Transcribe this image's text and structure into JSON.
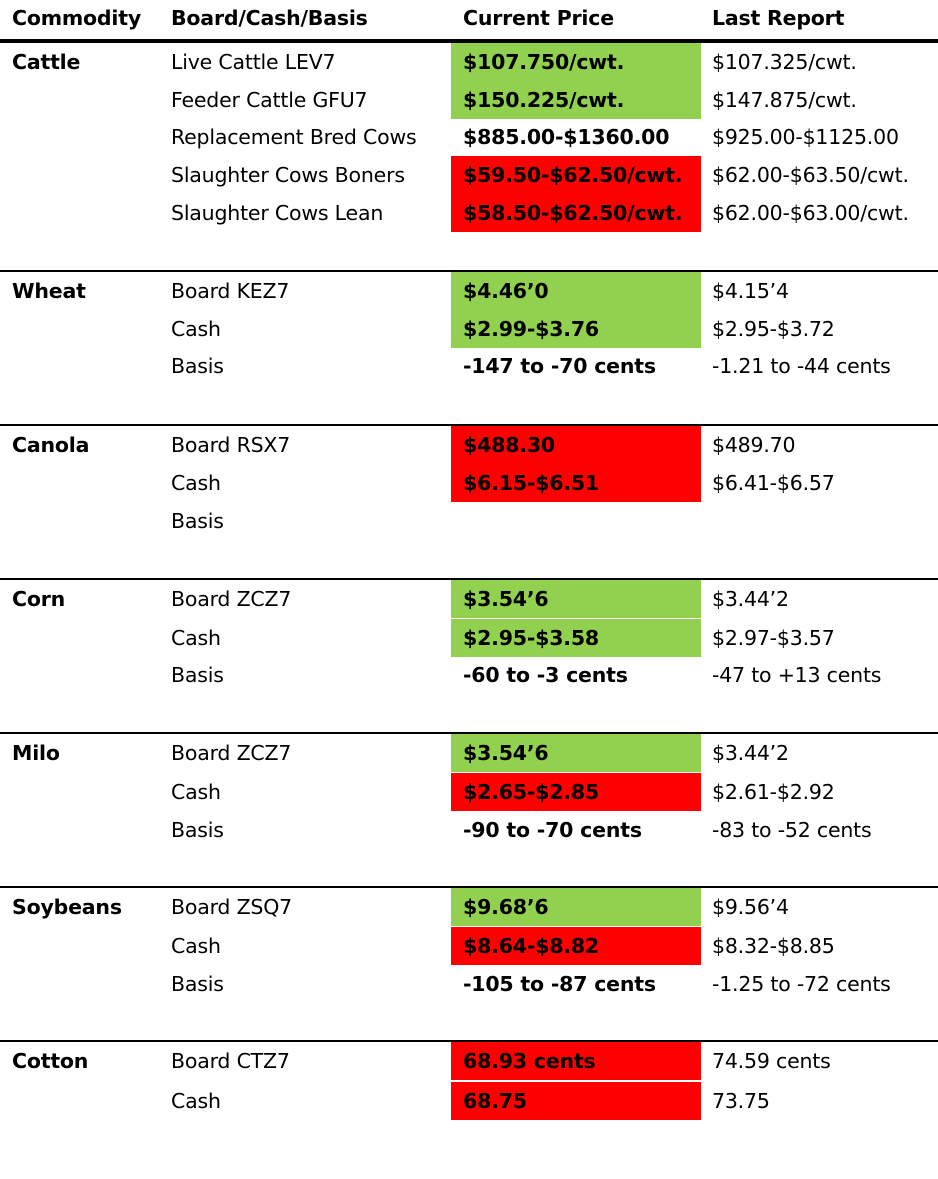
{
  "header": {
    "commodity": "Commodity",
    "board": "Board/Cash/Basis",
    "current": "Current Price",
    "last": "Last Report"
  },
  "colors": {
    "up": "#92d050",
    "down": "#ff0000"
  },
  "groups": [
    {
      "commodity": "Cattle",
      "rows": [
        {
          "label": "Live Cattle LEV7",
          "current": "$107.750/cwt.",
          "last": "$107.325/cwt.",
          "trend": "up"
        },
        {
          "label": "Feeder Cattle GFU7",
          "current": "$150.225/cwt.",
          "last": "$147.875/cwt.",
          "trend": "up"
        },
        {
          "label": "Replacement Bred Cows",
          "current": "$885.00-$1360.00",
          "last": "$925.00-$1125.00",
          "trend": "none"
        },
        {
          "label": "Slaughter Cows Boners",
          "current": "$59.50-$62.50/cwt.",
          "last": "$62.00-$63.50/cwt.",
          "trend": "down"
        },
        {
          "label": "Slaughter Cows Lean",
          "current": "$58.50-$62.50/cwt.",
          "last": "$62.00-$63.00/cwt.",
          "trend": "down"
        }
      ]
    },
    {
      "commodity": "Wheat",
      "rows": [
        {
          "label": "Board KEZ7",
          "current": "$4.46’0",
          "last": "$4.15’4",
          "trend": "up"
        },
        {
          "label": "Cash",
          "current": "$2.99-$3.76",
          "last": "$2.95-$3.72",
          "trend": "up"
        },
        {
          "label": "Basis",
          "current": "-147 to -70 cents",
          "last": "-1.21 to -44 cents",
          "trend": "none"
        }
      ]
    },
    {
      "commodity": "Canola",
      "rows": [
        {
          "label": "Board RSX7",
          "current": "$488.30",
          "last": "$489.70",
          "trend": "down"
        },
        {
          "label": "Cash",
          "current": "$6.15-$6.51",
          "last": "$6.41-$6.57",
          "trend": "down"
        },
        {
          "label": "Basis",
          "current": "",
          "last": "",
          "trend": "none"
        }
      ]
    },
    {
      "commodity": "Corn",
      "rows": [
        {
          "label": "Board ZCZ7",
          "current": "$3.54’6",
          "last": "$3.44’2",
          "trend": "up"
        },
        {
          "label": "Cash",
          "current": "$2.95-$3.58",
          "last": "$2.97-$3.57",
          "trend": "up"
        },
        {
          "label": "Basis",
          "current": "-60 to -3 cents",
          "last": "-47 to +13 cents",
          "trend": "none"
        }
      ]
    },
    {
      "commodity": "Milo",
      "rows": [
        {
          "label": "Board ZCZ7",
          "current": "$3.54’6",
          "last": "$3.44’2",
          "trend": "up"
        },
        {
          "label": "Cash",
          "current": "$2.65-$2.85",
          "last": "$2.61-$2.92",
          "trend": "down"
        },
        {
          "label": "Basis",
          "current": "-90 to -70 cents",
          "last": "-83 to -52 cents",
          "trend": "none"
        }
      ]
    },
    {
      "commodity": "Soybeans",
      "rows": [
        {
          "label": "Board ZSQ7",
          "current": "$9.68’6",
          "last": "$9.56’4",
          "trend": "up"
        },
        {
          "label": "Cash",
          "current": "$8.64-$8.82",
          "last": "$8.32-$8.85",
          "trend": "down"
        },
        {
          "label": "Basis",
          "current": "-105 to -87 cents",
          "last": "-1.25 to -72 cents",
          "trend": "none"
        }
      ]
    },
    {
      "commodity": "Cotton",
      "rows": [
        {
          "label": "Board CTZ7",
          "current": "68.93 cents",
          "last": "74.59 cents",
          "trend": "down"
        },
        {
          "label": "Cash",
          "current": "68.75",
          "last": "73.75",
          "trend": "down"
        }
      ]
    }
  ]
}
